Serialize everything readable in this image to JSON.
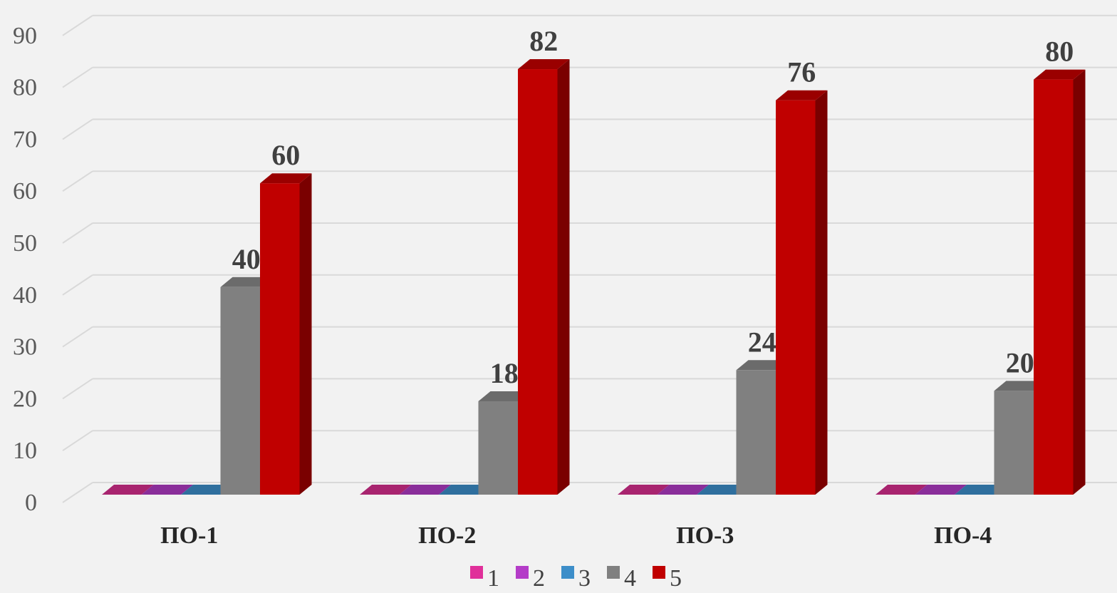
{
  "chart_data": {
    "type": "bar",
    "categories": [
      "ПО-1",
      "ПО-2",
      "ПО-3",
      "ПО-4"
    ],
    "series": [
      {
        "name": "1",
        "values": [
          0,
          0,
          0,
          0
        ],
        "color": "#e0309a",
        "top": "#a8246f",
        "side": "#7a1a52"
      },
      {
        "name": "2",
        "values": [
          0,
          0,
          0,
          0
        ],
        "color": "#b43cc8",
        "top": "#8a2e9a",
        "side": "#611f6c"
      },
      {
        "name": "3",
        "values": [
          0,
          0,
          0,
          0
        ],
        "color": "#3d8ec9",
        "top": "#2f6f9e",
        "side": "#214f70"
      },
      {
        "name": "4",
        "values": [
          40,
          18,
          24,
          20
        ],
        "color": "#808080",
        "top": "#6b6b6b",
        "side": "#5a5a5a"
      },
      {
        "name": "5",
        "values": [
          60,
          82,
          76,
          80
        ],
        "color": "#c00000",
        "top": "#9a0000",
        "side": "#7a0000"
      }
    ],
    "data_labels_series": [
      "4",
      "5"
    ],
    "ylim": [
      0,
      90
    ],
    "yticks": [
      0,
      10,
      20,
      30,
      40,
      50,
      60,
      70,
      80,
      90
    ],
    "grid": true,
    "legend_position": "bottom",
    "title": "",
    "xlabel": "",
    "ylabel": ""
  }
}
